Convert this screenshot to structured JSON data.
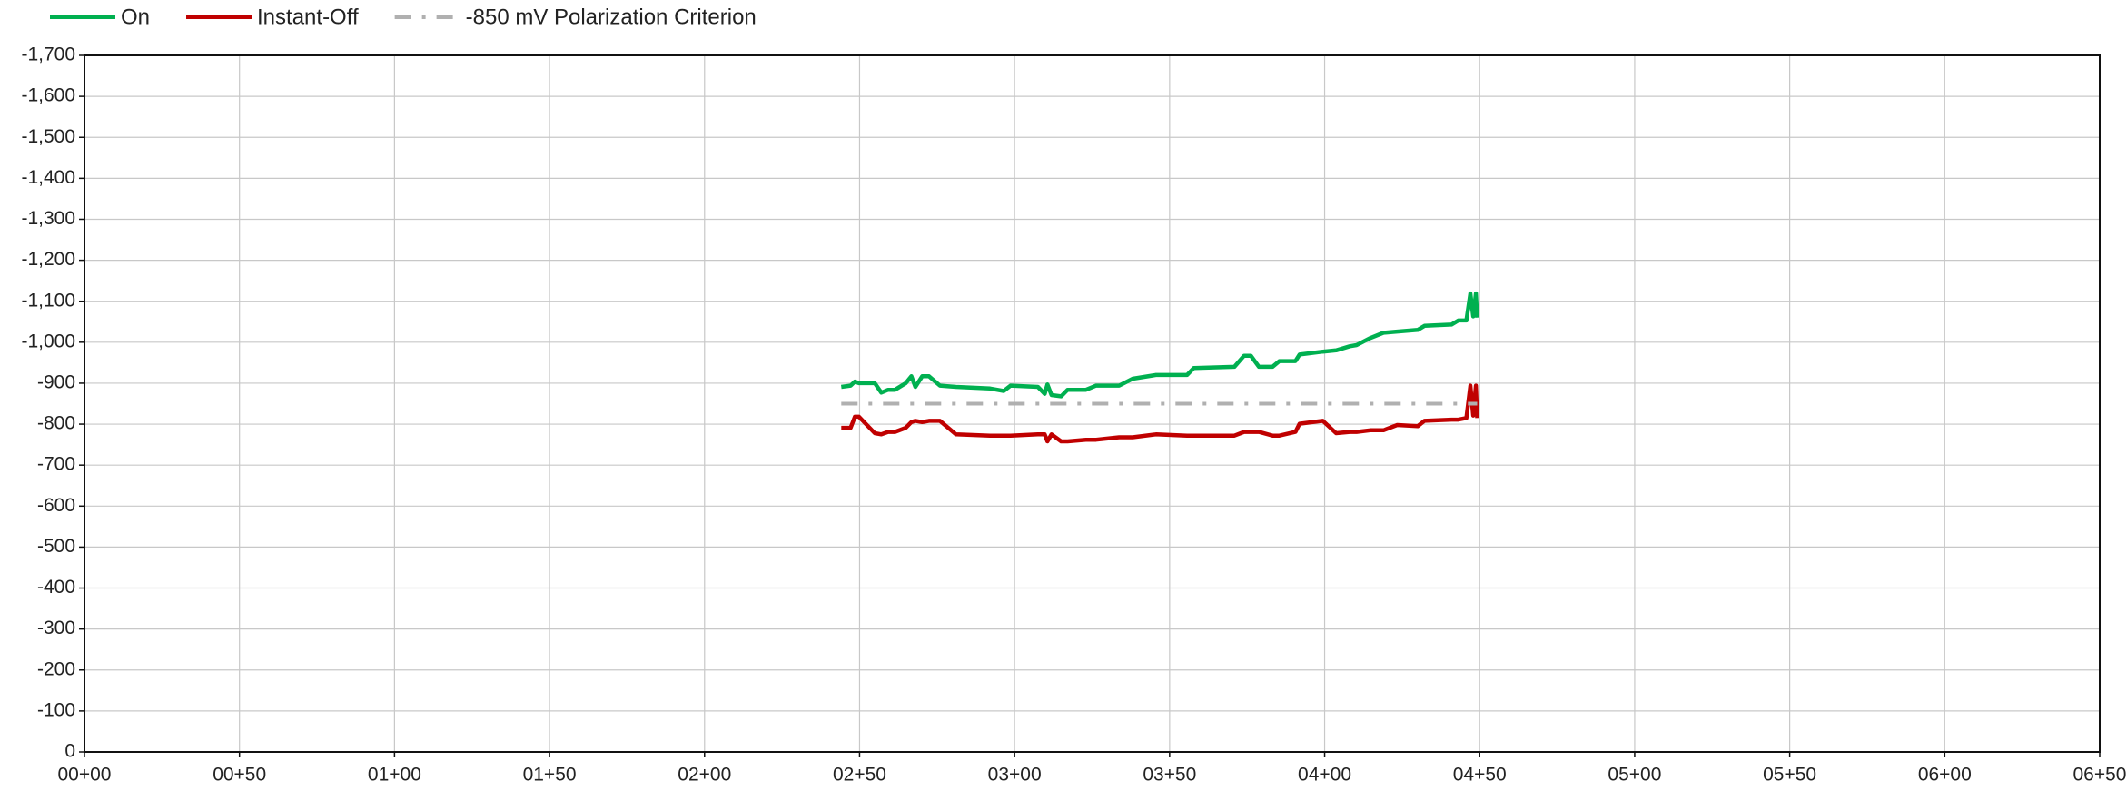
{
  "chart_data": {
    "type": "line",
    "x": [
      244.1,
      247.1,
      248.5,
      249.8,
      254.9,
      257.0,
      259.2,
      261.4,
      264.9,
      266.7,
      268.0,
      270.2,
      272.4,
      275.9,
      281.1,
      292.1,
      296.5,
      298.7,
      307.5,
      309.7,
      310.6,
      311.9,
      315.0,
      317.1,
      323.0,
      326.3,
      333.7,
      338.1,
      345.6,
      355.6,
      357.8,
      370.9,
      374.0,
      376.2,
      378.8,
      383.2,
      385.4,
      390.6,
      391.9,
      399.4,
      403.7,
      408.1,
      410.3,
      414.7,
      419.0,
      423.4,
      430.0,
      432.2,
      440.9,
      443.1,
      445.7,
      447.0,
      447.9,
      448.8,
      449.2
    ],
    "series": [
      {
        "name": "On",
        "color": "#00b050",
        "dash": "solid",
        "values": [
          -891,
          -894,
          -904,
          -900,
          -900,
          -877,
          -884,
          -884,
          -900,
          -917,
          -891,
          -917,
          -917,
          -894,
          -891,
          -887,
          -881,
          -894,
          -891,
          -874,
          -897,
          -871,
          -868,
          -884,
          -884,
          -894,
          -894,
          -911,
          -920,
          -920,
          -937,
          -940,
          -967,
          -967,
          -940,
          -940,
          -954,
          -954,
          -970,
          -977,
          -980,
          -990,
          -993,
          -1010,
          -1023,
          -1026,
          -1030,
          -1040,
          -1043,
          -1053,
          -1053,
          -1119,
          -1063,
          -1119,
          -1060
        ]
      },
      {
        "name": "Instant-Off",
        "color": "#c00000",
        "dash": "solid",
        "values": [
          -791,
          -791,
          -818,
          -818,
          -778,
          -775,
          -781,
          -781,
          -791,
          -805,
          -808,
          -805,
          -808,
          -808,
          -775,
          -772,
          -772,
          -772,
          -775,
          -775,
          -758,
          -775,
          -758,
          -758,
          -762,
          -762,
          -768,
          -768,
          -775,
          -772,
          -772,
          -772,
          -781,
          -781,
          -781,
          -772,
          -772,
          -781,
          -801,
          -808,
          -778,
          -781,
          -781,
          -785,
          -785,
          -798,
          -795,
          -808,
          -811,
          -811,
          -815,
          -894,
          -821,
          -894,
          -815
        ]
      },
      {
        "name": "-850 mV Polarization Criterion",
        "color": "#b0b0b0",
        "dash": "dash-dot",
        "values": [
          -850,
          -850,
          -850,
          -850,
          -850,
          -850,
          -850,
          -850,
          -850,
          -850,
          -850,
          -850,
          -850,
          -850,
          -850,
          -850,
          -850,
          -850,
          -850,
          -850,
          -850,
          -850,
          -850,
          -850,
          -850,
          -850,
          -850,
          -850,
          -850,
          -850,
          -850,
          -850,
          -850,
          -850,
          -850,
          -850,
          -850,
          -850,
          -850,
          -850,
          -850,
          -850,
          -850,
          -850,
          -850,
          -850,
          -850,
          -850,
          -850,
          -850,
          -850,
          -850,
          -850,
          -850,
          -850
        ]
      }
    ],
    "xlim": [
      0,
      650
    ],
    "xticks": [
      {
        "value": 0,
        "label": "00+00"
      },
      {
        "value": 50,
        "label": "00+50"
      },
      {
        "value": 100,
        "label": "01+00"
      },
      {
        "value": 150,
        "label": "01+50"
      },
      {
        "value": 200,
        "label": "02+00"
      },
      {
        "value": 250,
        "label": "02+50"
      },
      {
        "value": 300,
        "label": "03+00"
      },
      {
        "value": 350,
        "label": "03+50"
      },
      {
        "value": 400,
        "label": "04+00"
      },
      {
        "value": 450,
        "label": "04+50"
      },
      {
        "value": 500,
        "label": "05+00"
      },
      {
        "value": 550,
        "label": "05+50"
      },
      {
        "value": 600,
        "label": "06+00"
      },
      {
        "value": 650,
        "label": "06+50"
      }
    ],
    "ylim": [
      0,
      -1700
    ],
    "yticks": [
      0,
      {
        "value": -100,
        "label": "-100"
      },
      {
        "value": -200,
        "label": "-200"
      },
      {
        "value": -300,
        "label": "-300"
      },
      {
        "value": -400,
        "label": "-400"
      },
      {
        "value": -500,
        "label": "-500"
      },
      {
        "value": -600,
        "label": "-600"
      },
      {
        "value": -700,
        "label": "-700"
      },
      {
        "value": -800,
        "label": "-800"
      },
      {
        "value": -900,
        "label": "-900"
      },
      {
        "value": -1000,
        "label": "-1,000"
      },
      {
        "value": -1100,
        "label": "-1,100"
      },
      {
        "value": -1200,
        "label": "-1,200"
      },
      {
        "value": -1300,
        "label": "-1,300"
      },
      {
        "value": -1400,
        "label": "-1,400"
      },
      {
        "value": -1500,
        "label": "-1,500"
      },
      {
        "value": -1600,
        "label": "-1,600"
      },
      {
        "value": -1700,
        "label": "-1,700"
      }
    ],
    "grid": true,
    "legend": "top-left"
  }
}
